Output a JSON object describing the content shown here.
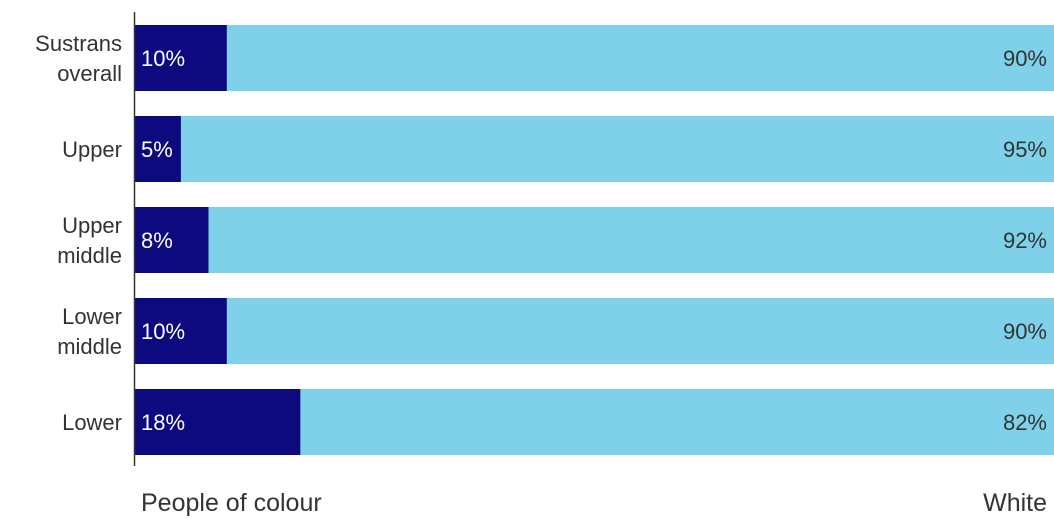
{
  "chart_data": {
    "type": "bar",
    "orientation": "horizontal",
    "stacked": true,
    "categories": [
      [
        "Sustrans",
        "overall"
      ],
      [
        "Upper"
      ],
      [
        "Upper",
        "middle"
      ],
      [
        "Lower",
        "middle"
      ],
      [
        "Lower"
      ]
    ],
    "series": [
      {
        "name": "People of colour",
        "values": [
          10,
          5,
          8,
          10,
          18
        ],
        "labels": [
          "10%",
          "5%",
          "8%",
          "10%",
          "18%"
        ],
        "color": "#0d0a80"
      },
      {
        "name": "White",
        "values": [
          90,
          95,
          92,
          90,
          82
        ],
        "labels": [
          "90%",
          "95%",
          "92%",
          "90%",
          "82%"
        ],
        "color": "#7fd0e9"
      }
    ],
    "xlim": [
      0,
      100
    ],
    "value_unit": "%",
    "legend": {
      "left_label": "People of colour",
      "right_label": "White",
      "placement": "bottom"
    },
    "grid": false,
    "axis_color": "#333333"
  }
}
